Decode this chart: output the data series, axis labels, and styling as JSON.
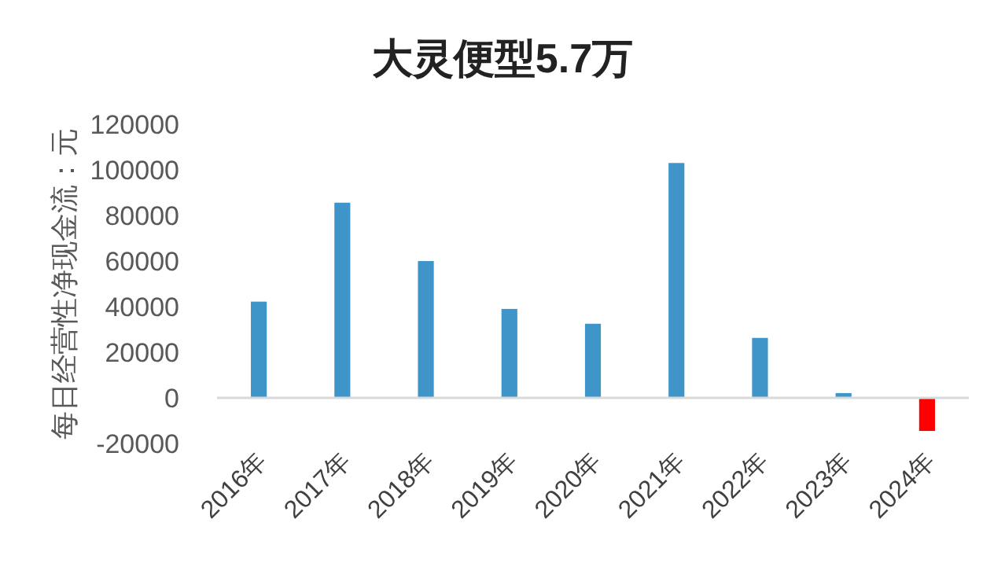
{
  "chart_data": {
    "type": "bar",
    "title": "大灵便型5.7万",
    "ylabel": "每日经营性净现金流：元",
    "categories": [
      "2016年",
      "2017年",
      "2018年",
      "2019年",
      "2020年",
      "2021年",
      "2022年",
      "2023年",
      "2024年"
    ],
    "values": [
      42200,
      85600,
      60000,
      39000,
      32500,
      103000,
      26300,
      2100,
      -14500
    ],
    "colors": [
      "#3f95c8",
      "#3f95c8",
      "#3f95c8",
      "#3f95c8",
      "#3f95c8",
      "#3f95c8",
      "#3f95c8",
      "#3f95c8",
      "#ff0000"
    ],
    "ylim": [
      -20000,
      120000
    ],
    "yticks": [
      -20000,
      0,
      20000,
      40000,
      60000,
      80000,
      100000,
      120000
    ],
    "grid": false
  }
}
